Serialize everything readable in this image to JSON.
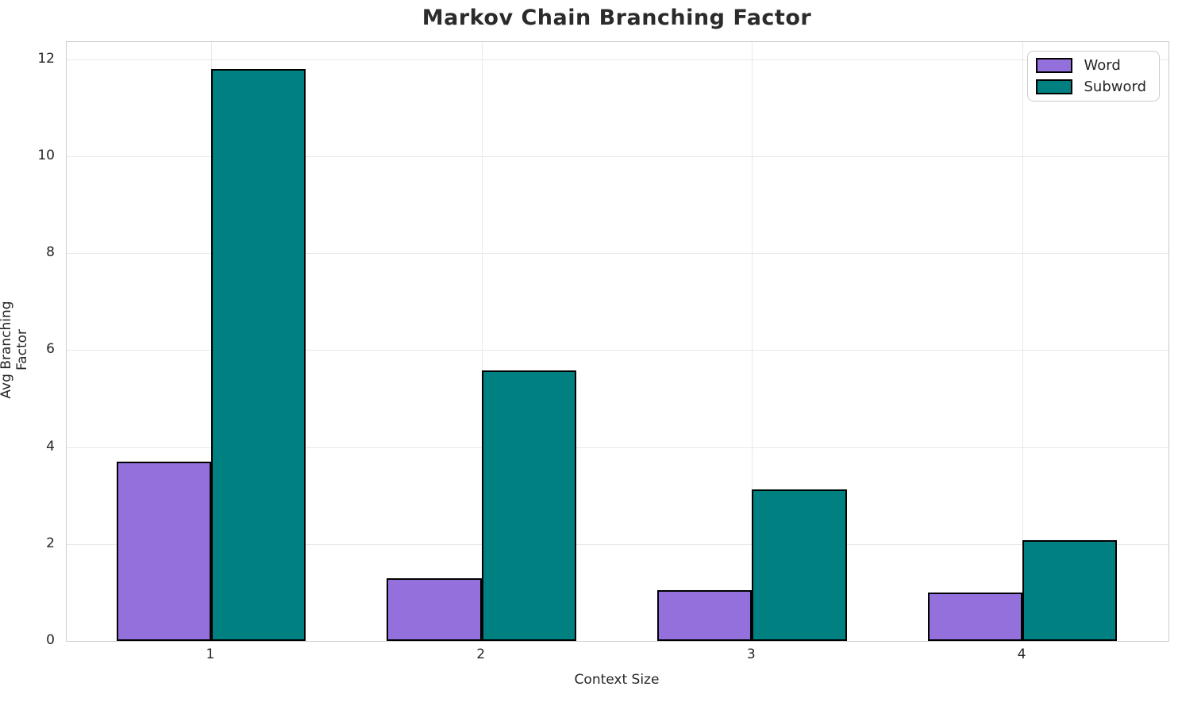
{
  "chart_data": {
    "type": "bar",
    "title": "Markov Chain Branching Factor",
    "xlabel": "Context Size",
    "ylabel": "Avg Branching Factor",
    "categories": [
      "1",
      "2",
      "3",
      "4"
    ],
    "series": [
      {
        "name": "Word",
        "color": "#9370db",
        "values": [
          3.7,
          1.3,
          1.05,
          1.0
        ]
      },
      {
        "name": "Subword",
        "color": "#008080",
        "values": [
          11.8,
          5.58,
          3.12,
          2.08
        ]
      }
    ],
    "bar_edge_color": "#000000",
    "bar_width_units": 0.35,
    "yticks": [
      0,
      2,
      4,
      6,
      8,
      10,
      12
    ],
    "ylim": [
      0,
      12.36
    ],
    "xlim": [
      0.466,
      4.54
    ],
    "grid": true,
    "legend_position": "upper right",
    "colors": {
      "grid": "#e8e8e8",
      "spine": "#cccccc",
      "text": "#262626",
      "title": "#2b2b2b"
    }
  }
}
